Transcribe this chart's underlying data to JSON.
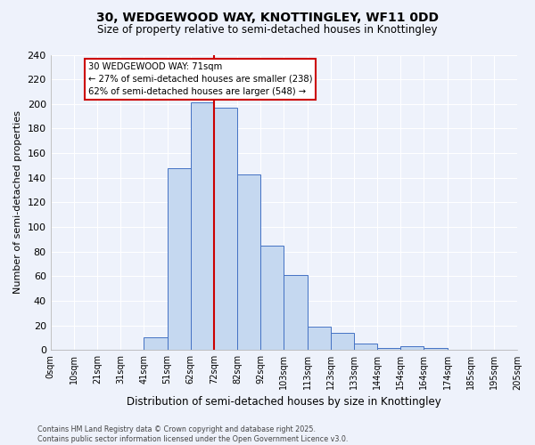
{
  "title1": "30, WEDGEWOOD WAY, KNOTTINGLEY, WF11 0DD",
  "title2": "Size of property relative to semi-detached houses in Knottingley",
  "xlabel": "Distribution of semi-detached houses by size in Knottingley",
  "ylabel": "Number of semi-detached properties",
  "bar_labels": [
    "0sqm",
    "10sqm",
    "21sqm",
    "31sqm",
    "41sqm",
    "51sqm",
    "62sqm",
    "72sqm",
    "82sqm",
    "92sqm",
    "103sqm",
    "113sqm",
    "123sqm",
    "133sqm",
    "144sqm",
    "154sqm",
    "164sqm",
    "174sqm",
    "185sqm",
    "195sqm",
    "205sqm"
  ],
  "bar_values": [
    0,
    0,
    0,
    0,
    10,
    148,
    201,
    197,
    143,
    85,
    61,
    19,
    14,
    5,
    2,
    3,
    2,
    0,
    0,
    0
  ],
  "bar_color": "#c5d8f0",
  "bar_edge_color": "#4472c4",
  "ylim": [
    0,
    240
  ],
  "yticks": [
    0,
    20,
    40,
    60,
    80,
    100,
    120,
    140,
    160,
    180,
    200,
    220,
    240
  ],
  "vline_color": "#cc0000",
  "annotation_text": "30 WEDGEWOOD WAY: 71sqm\n← 27% of semi-detached houses are smaller (238)\n62% of semi-detached houses are larger (548) →",
  "annotation_box_color": "#cc0000",
  "footnote": "Contains HM Land Registry data © Crown copyright and database right 2025.\nContains public sector information licensed under the Open Government Licence v3.0.",
  "bg_color": "#eef2fb"
}
